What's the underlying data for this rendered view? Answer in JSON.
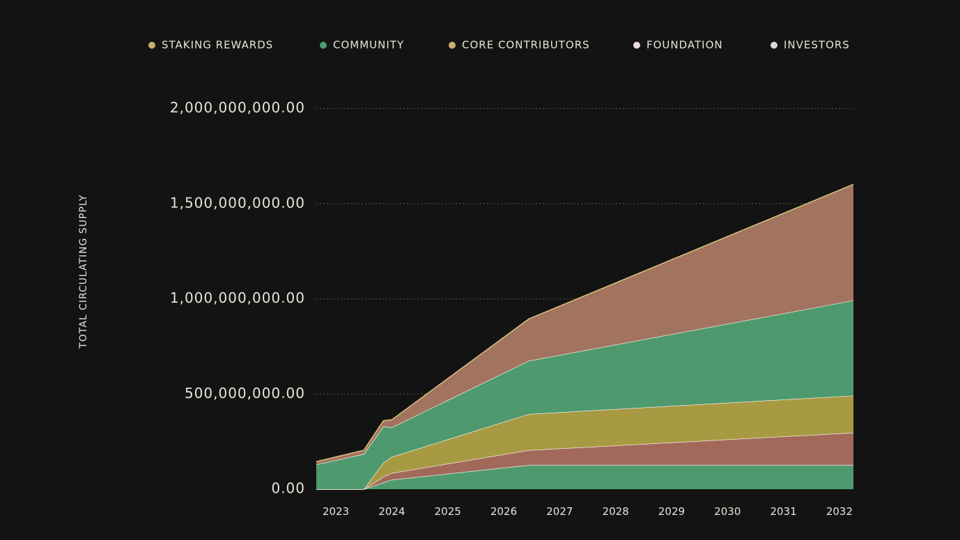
{
  "chart_data": {
    "type": "area",
    "stacked": true,
    "ylabel": "TOTAL CIRCULATING SUPPLY",
    "ylim": [
      0,
      2000000000
    ],
    "yticks": [
      0,
      500000000,
      1000000000,
      1500000000,
      2000000000
    ],
    "ytick_labels": [
      "0.00",
      "500,000,000.00",
      "1,000,000,000.00",
      "1,500,000,000.00",
      "2,000,000,000.00"
    ],
    "xlim": [
      2022.65,
      2032.25
    ],
    "xticks": [
      2023,
      2024,
      2025,
      2026,
      2027,
      2028,
      2029,
      2030,
      2031,
      2032
    ],
    "xtick_labels": [
      "2023",
      "2024",
      "2025",
      "2026",
      "2027",
      "2028",
      "2029",
      "2030",
      "2031",
      "2032"
    ],
    "grid": true,
    "legend_position": "top",
    "x": [
      2022.65,
      2023.5,
      2023.85,
      2024.0,
      2026.45,
      2032.25
    ],
    "series": [
      {
        "name": "INVESTORS",
        "color": "#4e9a6e",
        "values": [
          0,
          0,
          35000000,
          50000000,
          127000000,
          127000000
        ]
      },
      {
        "name": "FOUNDATION",
        "color": "#a2695a",
        "values": [
          0,
          0,
          30000000,
          35000000,
          78000000,
          170000000
        ]
      },
      {
        "name": "CORE CONTRIBUTORS",
        "color": "#a89a42",
        "values": [
          0,
          0,
          75000000,
          85000000,
          190000000,
          195000000
        ]
      },
      {
        "name": "COMMUNITY",
        "color": "#4e9a6e",
        "values": [
          130000000,
          185000000,
          190000000,
          155000000,
          280000000,
          500000000
        ]
      },
      {
        "name": "STAKING REWARDS",
        "color": "#a2735e",
        "values": [
          15000000,
          20000000,
          30000000,
          40000000,
          220000000,
          610000000
        ]
      }
    ],
    "legend": [
      {
        "name": "STAKING REWARDS",
        "color": "#c9b06a"
      },
      {
        "name": "COMMUNITY",
        "color": "#4e9a6e"
      },
      {
        "name": "CORE CONTRIBUTORS",
        "color": "#c9b06a"
      },
      {
        "name": "FOUNDATION",
        "color": "#e8dcdc"
      },
      {
        "name": "INVESTORS",
        "color": "#d9d9d9"
      }
    ]
  }
}
